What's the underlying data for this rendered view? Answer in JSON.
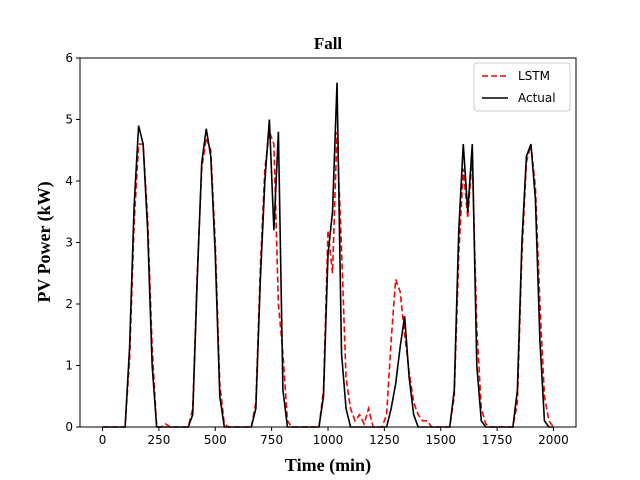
{
  "chart_data": {
    "type": "line",
    "title": "Fall",
    "xlabel": "Time (min)",
    "ylabel": "PV Power (kW)",
    "x": [
      0,
      20,
      40,
      60,
      80,
      100,
      120,
      140,
      160,
      180,
      200,
      220,
      240,
      260,
      280,
      300,
      320,
      340,
      360,
      380,
      400,
      420,
      440,
      460,
      480,
      500,
      520,
      540,
      560,
      580,
      600,
      620,
      640,
      660,
      680,
      700,
      720,
      740,
      760,
      780,
      800,
      820,
      840,
      860,
      880,
      900,
      920,
      940,
      960,
      980,
      1000,
      1020,
      1040,
      1060,
      1080,
      1100,
      1120,
      1140,
      1160,
      1180,
      1200,
      1220,
      1240,
      1260,
      1280,
      1300,
      1320,
      1340,
      1360,
      1380,
      1400,
      1420,
      1440,
      1460,
      1480,
      1500,
      1520,
      1540,
      1560,
      1580,
      1600,
      1620,
      1640,
      1660,
      1680,
      1700,
      1720,
      1740,
      1760,
      1780,
      1800,
      1820,
      1840,
      1860,
      1880,
      1900,
      1920,
      1940,
      1960,
      1980,
      2000
    ],
    "series": [
      {
        "name": "LSTM",
        "color": "#ff0000",
        "linestyle": "dashed",
        "values": [
          0,
          0,
          0,
          0,
          0,
          0,
          1.1,
          3.3,
          4.6,
          4.6,
          3.4,
          1.3,
          0,
          0,
          0.05,
          0,
          0,
          0,
          0,
          0,
          0.3,
          2.5,
          4.2,
          4.7,
          4.5,
          3.0,
          0.7,
          0.05,
          0,
          0,
          0,
          0,
          0,
          0,
          0.4,
          2.6,
          4.2,
          4.8,
          4.6,
          2.0,
          1.2,
          0.1,
          0,
          0,
          0,
          0,
          0,
          0,
          0,
          0.6,
          3.2,
          2.5,
          4.8,
          2.9,
          0.8,
          0.3,
          0.1,
          0.2,
          0.05,
          0.3,
          0,
          0,
          0,
          0.2,
          1.4,
          2.4,
          2.2,
          1.5,
          0.9,
          0.4,
          0.2,
          0.1,
          0.1,
          0,
          0,
          0,
          0,
          0,
          0.5,
          2.8,
          4.2,
          3.4,
          4.4,
          1.6,
          0.3,
          0.05,
          0,
          0,
          0,
          0,
          0,
          0,
          0.4,
          2.8,
          4.3,
          4.6,
          3.9,
          2.0,
          0.5,
          0.1,
          0
        ]
      },
      {
        "name": "Actual",
        "color": "#000000",
        "linestyle": "solid",
        "values": [
          0,
          0,
          0,
          0,
          0,
          0,
          1.3,
          3.6,
          4.9,
          4.6,
          3.2,
          1.0,
          0,
          0,
          0,
          0,
          0,
          0,
          0,
          0,
          0.2,
          2.4,
          4.3,
          4.85,
          4.4,
          2.8,
          0.5,
          0,
          0,
          0,
          0,
          0,
          0,
          0,
          0.3,
          2.4,
          4.0,
          5.0,
          3.2,
          4.8,
          0.6,
          0,
          0,
          0,
          0,
          0,
          0,
          0,
          0,
          0.5,
          2.8,
          3.5,
          5.6,
          1.2,
          0.3,
          0,
          0,
          0,
          0,
          0,
          0,
          0,
          0,
          0,
          0.3,
          0.7,
          1.3,
          1.8,
          0.8,
          0.2,
          0,
          0,
          0,
          0,
          0,
          0,
          0,
          0,
          0.6,
          3.2,
          4.6,
          3.5,
          4.6,
          1.0,
          0.1,
          0,
          0,
          0,
          0,
          0,
          0,
          0,
          0.6,
          3.0,
          4.4,
          4.6,
          3.7,
          1.4,
          0.1,
          0,
          0
        ]
      }
    ],
    "xlim": [
      -100,
      2100
    ],
    "xticks": [
      0,
      250,
      500,
      750,
      1000,
      1250,
      1500,
      1750,
      2000
    ],
    "ylim": [
      0,
      6
    ],
    "yticks": [
      0,
      1,
      2,
      3,
      4,
      5,
      6
    ],
    "legend": "upper right"
  }
}
